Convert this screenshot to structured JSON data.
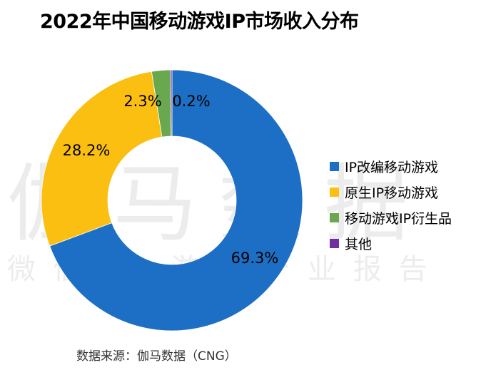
{
  "chart_data": {
    "type": "pie",
    "title": "2022年中国移动游戏IP市场收入分布",
    "categories": [
      "IP改编移动游戏",
      "原生IP移动游戏",
      "移动游戏IP衍生品",
      "其他"
    ],
    "values": [
      69.3,
      28.2,
      2.3,
      0.2
    ],
    "value_labels": [
      "69.3%",
      "28.2%",
      "2.3%",
      "0.2%"
    ],
    "colors": [
      "#1c6fc4",
      "#fbbf12",
      "#6aa84f",
      "#7030a0"
    ],
    "legend_position": "right",
    "donut": true
  },
  "watermark": {
    "main": "伽马数据",
    "sub": "微信号·游戏产业报告"
  },
  "source": "数据来源：伽马数据（CNG）"
}
